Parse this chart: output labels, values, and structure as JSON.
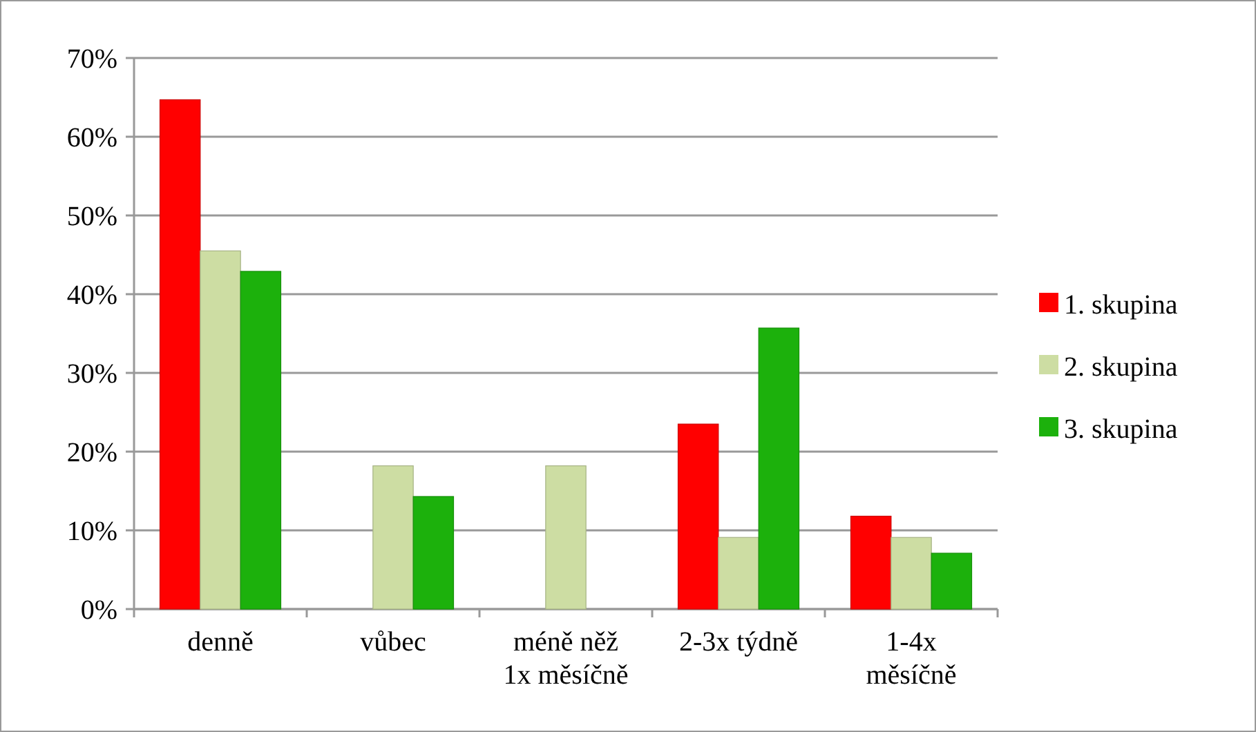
{
  "chart_data": {
    "type": "bar",
    "categories": [
      "denně",
      "vůbec",
      "méně něž\n1x měsíčně",
      "2-3x týdně",
      "1-4x\nměsíčně"
    ],
    "series": [
      {
        "name": "1. skupina",
        "color": "#ff0000",
        "values": [
          64.7,
          0,
          0,
          23.5,
          11.8
        ]
      },
      {
        "name": "2. skupina",
        "color": "#cddda3",
        "values": [
          45.5,
          18.2,
          18.2,
          9.1,
          9.1
        ]
      },
      {
        "name": "3. skupina",
        "color": "#1cb10c",
        "values": [
          42.9,
          14.3,
          0,
          35.7,
          7.1
        ]
      }
    ],
    "ylim": [
      0,
      70
    ],
    "yticks": [
      {
        "value": 0,
        "label": "0%"
      },
      {
        "value": 10,
        "label": "10%"
      },
      {
        "value": 20,
        "label": "20%"
      },
      {
        "value": 30,
        "label": "30%"
      },
      {
        "value": 40,
        "label": "40%"
      },
      {
        "value": 50,
        "label": "50%"
      },
      {
        "value": 60,
        "label": "60%"
      },
      {
        "value": 70,
        "label": "70%"
      }
    ],
    "grid": "y",
    "legend": "right"
  }
}
